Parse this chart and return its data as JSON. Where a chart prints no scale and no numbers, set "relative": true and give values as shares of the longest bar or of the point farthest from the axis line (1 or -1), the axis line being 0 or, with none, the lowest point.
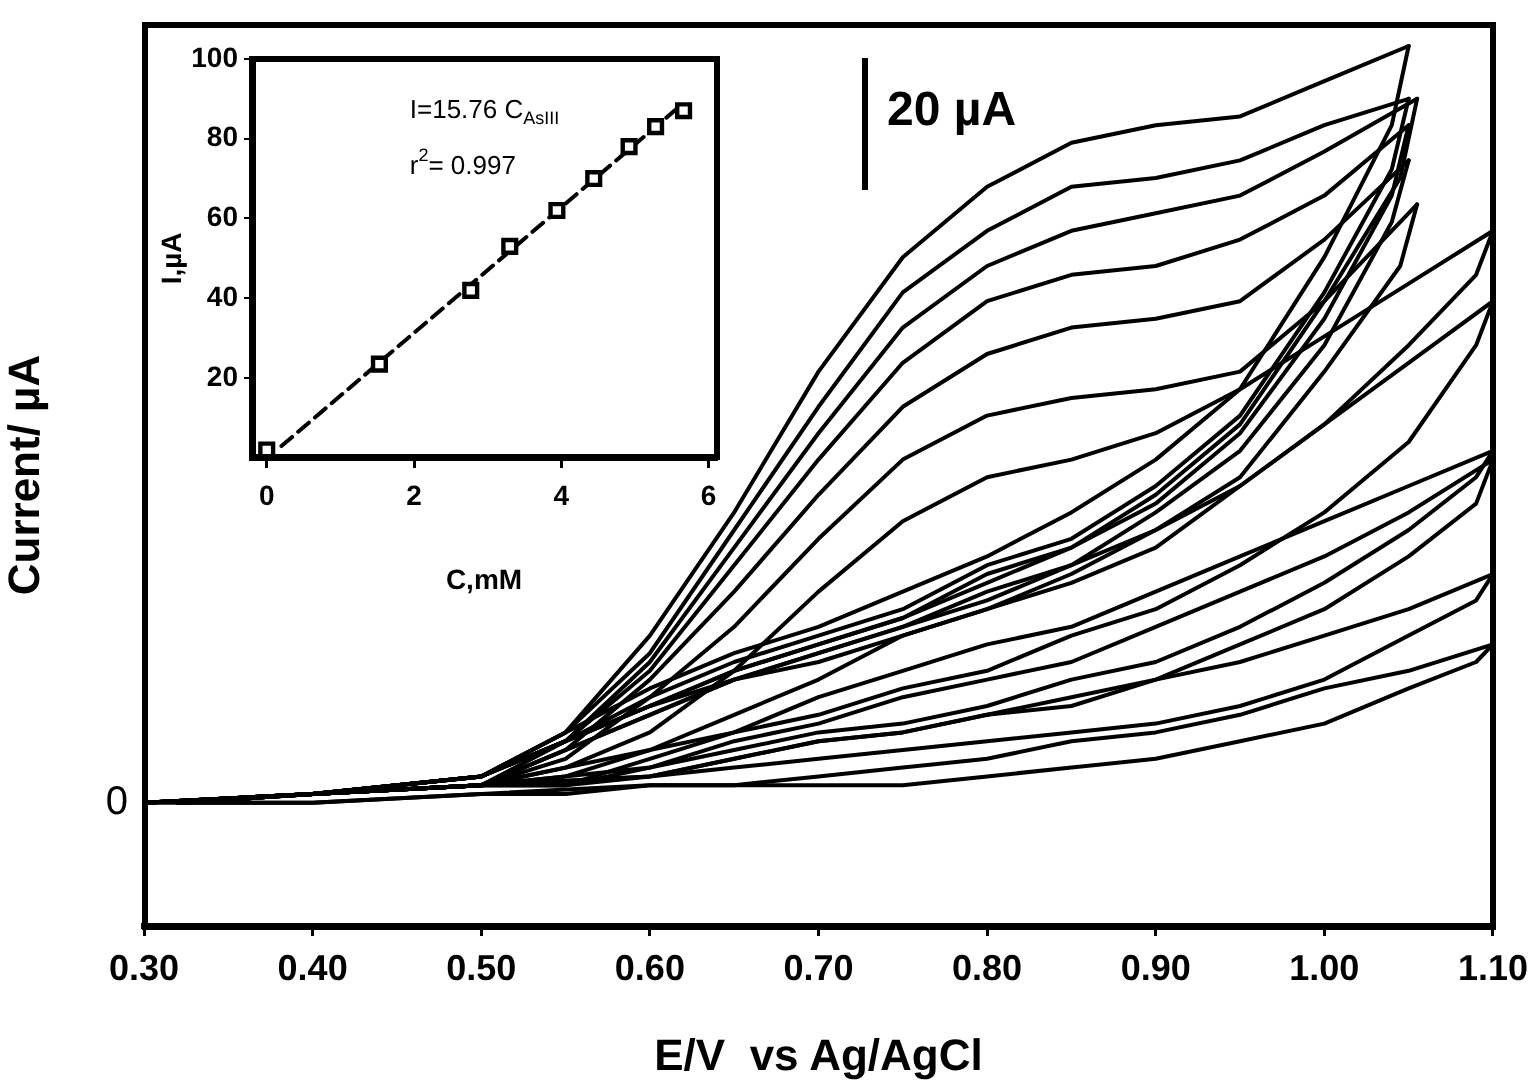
{
  "chart_data": [
    {
      "type": "line",
      "relative": true,
      "xlabel": "E/V  vs Ag/AgCl",
      "ylabel": "Current/ µA",
      "xlim": [
        0.3,
        1.1
      ],
      "xticks": [
        {
          "value": 0.3,
          "label": "0.30"
        },
        {
          "value": 0.4,
          "label": "0.40"
        },
        {
          "value": 0.5,
          "label": "0.50"
        },
        {
          "value": 0.6,
          "label": "0.60"
        },
        {
          "value": 0.7,
          "label": "0.70"
        },
        {
          "value": 0.8,
          "label": "0.80"
        },
        {
          "value": 0.9,
          "label": "0.90"
        },
        {
          "value": 1.0,
          "label": "1.00"
        },
        {
          "value": 1.1,
          "label": "1.10"
        }
      ],
      "annotations": [
        {
          "text": "0",
          "x": 0.3,
          "y": 0.14
        },
        "20 µA"
      ],
      "marker": "none",
      "series": [
        {
          "color": "#000000",
          "x": [
            0.3,
            0.4,
            0.5,
            0.55,
            0.6,
            0.65,
            0.7,
            0.75,
            0.8,
            0.85,
            0.9,
            0.95,
            1.0,
            1.05
          ],
          "values": [
            0.14,
            0.15,
            0.17,
            0.22,
            0.33,
            0.47,
            0.63,
            0.76,
            0.84,
            0.89,
            0.91,
            0.92,
            0.96,
            1.0
          ]
        },
        {
          "color": "#000000",
          "x": [
            1.05,
            1.04,
            1.0,
            0.95,
            0.9,
            0.85,
            0.8,
            0.75,
            0.7,
            0.65,
            0.6,
            0.55,
            0.5,
            0.4,
            0.32
          ],
          "values": [
            1.0,
            0.91,
            0.76,
            0.61,
            0.53,
            0.47,
            0.42,
            0.38,
            0.34,
            0.31,
            0.27,
            0.22,
            0.17,
            0.15,
            0.14
          ]
        },
        {
          "color": "#000000",
          "x": [
            0.3,
            0.4,
            0.5,
            0.55,
            0.6,
            0.65,
            0.7,
            0.75,
            0.8,
            0.85,
            0.9,
            0.95,
            1.0,
            1.05
          ],
          "values": [
            0.14,
            0.15,
            0.17,
            0.22,
            0.31,
            0.45,
            0.59,
            0.72,
            0.79,
            0.84,
            0.85,
            0.87,
            0.91,
            0.94
          ]
        },
        {
          "color": "#000000",
          "x": [
            1.05,
            1.04,
            1.0,
            0.95,
            0.9,
            0.85,
            0.8,
            0.75,
            0.7,
            0.65,
            0.6,
            0.55,
            0.5,
            0.4,
            0.32
          ],
          "values": [
            0.94,
            0.86,
            0.72,
            0.58,
            0.5,
            0.44,
            0.41,
            0.36,
            0.33,
            0.3,
            0.26,
            0.21,
            0.17,
            0.15,
            0.14
          ]
        },
        {
          "color": "#000000",
          "x": [
            0.3,
            0.4,
            0.5,
            0.55,
            0.6,
            0.65,
            0.7,
            0.75,
            0.8,
            0.85,
            0.9,
            0.95,
            1.0,
            1.055
          ],
          "values": [
            0.14,
            0.15,
            0.17,
            0.21,
            0.3,
            0.43,
            0.56,
            0.68,
            0.75,
            0.79,
            0.81,
            0.83,
            0.88,
            0.94
          ]
        },
        {
          "color": "#000000",
          "x": [
            1.055,
            1.045,
            1.0,
            0.95,
            0.9,
            0.85,
            0.8,
            0.75,
            0.7,
            0.65,
            0.6,
            0.55,
            0.5,
            0.4,
            0.32
          ],
          "values": [
            0.94,
            0.85,
            0.71,
            0.57,
            0.49,
            0.43,
            0.4,
            0.35,
            0.32,
            0.29,
            0.25,
            0.21,
            0.17,
            0.15,
            0.14
          ]
        },
        {
          "color": "#000000",
          "x": [
            0.3,
            0.4,
            0.5,
            0.55,
            0.6,
            0.65,
            0.7,
            0.75,
            0.8,
            0.85,
            0.9,
            0.95,
            1.0,
            1.05
          ],
          "values": [
            0.14,
            0.15,
            0.17,
            0.21,
            0.29,
            0.41,
            0.53,
            0.64,
            0.71,
            0.74,
            0.75,
            0.78,
            0.83,
            0.91
          ]
        },
        {
          "color": "#000000",
          "x": [
            1.05,
            1.04,
            1.0,
            0.95,
            0.9,
            0.85,
            0.8,
            0.75,
            0.7,
            0.65,
            0.6,
            0.55,
            0.5,
            0.4,
            0.32
          ],
          "values": [
            0.91,
            0.83,
            0.69,
            0.56,
            0.48,
            0.43,
            0.39,
            0.35,
            0.32,
            0.29,
            0.25,
            0.21,
            0.17,
            0.15,
            0.14
          ]
        },
        {
          "color": "#000000",
          "x": [
            0.3,
            0.4,
            0.5,
            0.55,
            0.6,
            0.65,
            0.7,
            0.75,
            0.8,
            0.85,
            0.9,
            0.95,
            1.0,
            1.05
          ],
          "values": [
            0.14,
            0.15,
            0.16,
            0.2,
            0.28,
            0.38,
            0.49,
            0.59,
            0.65,
            0.68,
            0.69,
            0.71,
            0.78,
            0.87
          ]
        },
        {
          "color": "#000000",
          "x": [
            1.05,
            1.04,
            1.0,
            0.95,
            0.9,
            0.85,
            0.8,
            0.75,
            0.7,
            0.65,
            0.6,
            0.55,
            0.5,
            0.4,
            0.32
          ],
          "values": [
            0.87,
            0.8,
            0.66,
            0.54,
            0.47,
            0.41,
            0.38,
            0.34,
            0.31,
            0.28,
            0.25,
            0.21,
            0.16,
            0.15,
            0.14
          ]
        },
        {
          "color": "#000000",
          "x": [
            0.3,
            0.4,
            0.5,
            0.55,
            0.6,
            0.65,
            0.7,
            0.75,
            0.8,
            0.85,
            0.9,
            0.95,
            1.0,
            1.055
          ],
          "values": [
            0.14,
            0.15,
            0.16,
            0.19,
            0.26,
            0.34,
            0.44,
            0.53,
            0.58,
            0.6,
            0.61,
            0.63,
            0.71,
            0.82
          ]
        },
        {
          "color": "#000000",
          "x": [
            1.055,
            1.045,
            1.0,
            0.95,
            0.9,
            0.85,
            0.8,
            0.75,
            0.7,
            0.65,
            0.6,
            0.55,
            0.5,
            0.4,
            0.32
          ],
          "values": [
            0.82,
            0.75,
            0.63,
            0.51,
            0.45,
            0.4,
            0.36,
            0.33,
            0.3,
            0.28,
            0.24,
            0.2,
            0.16,
            0.15,
            0.14
          ]
        },
        {
          "color": "#000000",
          "x": [
            0.3,
            0.4,
            0.5,
            0.55,
            0.6,
            0.65,
            0.7,
            0.75,
            0.8,
            0.85,
            0.9,
            0.95,
            1.0,
            1.05,
            1.1
          ],
          "values": [
            0.14,
            0.15,
            0.16,
            0.18,
            0.22,
            0.29,
            0.38,
            0.46,
            0.51,
            0.53,
            0.56,
            0.61,
            0.67,
            0.73,
            0.79
          ]
        },
        {
          "color": "#000000",
          "x": [
            1.1,
            1.09,
            1.05,
            1.0,
            0.95,
            0.9,
            0.85,
            0.8,
            0.75,
            0.7,
            0.65,
            0.6,
            0.5,
            0.4,
            0.32
          ],
          "values": [
            0.79,
            0.74,
            0.66,
            0.57,
            0.5,
            0.45,
            0.41,
            0.37,
            0.34,
            0.31,
            0.28,
            0.24,
            0.16,
            0.15,
            0.14
          ]
        },
        {
          "color": "#000000",
          "x": [
            0.3,
            0.4,
            0.5,
            0.55,
            0.6,
            0.65,
            0.7,
            0.75,
            0.8,
            0.85,
            0.9,
            0.95,
            1.0,
            1.05,
            1.1
          ],
          "values": [
            0.14,
            0.15,
            0.16,
            0.17,
            0.2,
            0.24,
            0.28,
            0.33,
            0.36,
            0.39,
            0.43,
            0.5,
            0.57,
            0.64,
            0.71
          ]
        },
        {
          "color": "#000000",
          "x": [
            1.1,
            1.09,
            1.05,
            1.0,
            0.95,
            0.9,
            0.85,
            0.8,
            0.75,
            0.7,
            0.65,
            0.6,
            0.5,
            0.4,
            0.32
          ],
          "values": [
            0.71,
            0.66,
            0.55,
            0.47,
            0.41,
            0.36,
            0.33,
            0.29,
            0.27,
            0.24,
            0.22,
            0.2,
            0.16,
            0.15,
            0.14
          ]
        },
        {
          "color": "#000000",
          "x": [
            0.3,
            0.4,
            0.5,
            0.55,
            0.6,
            0.65,
            0.7,
            0.75,
            0.8,
            0.85,
            0.9,
            0.95,
            1.0,
            1.05,
            1.1
          ],
          "values": [
            0.14,
            0.15,
            0.16,
            0.16,
            0.19,
            0.22,
            0.26,
            0.29,
            0.32,
            0.34,
            0.38,
            0.42,
            0.46,
            0.5,
            0.54
          ]
        },
        {
          "color": "#000000",
          "x": [
            1.1,
            1.09,
            1.05,
            1.0,
            0.95,
            0.9,
            0.85,
            0.8,
            0.75,
            0.7,
            0.65,
            0.6,
            0.5,
            0.4,
            0.32
          ],
          "values": [
            0.54,
            0.51,
            0.45,
            0.39,
            0.34,
            0.3,
            0.28,
            0.25,
            0.23,
            0.22,
            0.2,
            0.18,
            0.16,
            0.15,
            0.14
          ]
        },
        {
          "color": "#000000",
          "x": [
            0.3,
            0.4,
            0.5,
            0.55,
            0.6,
            0.65,
            0.7,
            0.75,
            0.8,
            0.85,
            0.9,
            0.95,
            1.0,
            1.05,
            1.1
          ],
          "values": [
            0.14,
            0.15,
            0.16,
            0.16,
            0.18,
            0.21,
            0.23,
            0.26,
            0.28,
            0.3,
            0.34,
            0.38,
            0.42,
            0.47,
            0.53
          ]
        },
        {
          "color": "#000000",
          "x": [
            1.1,
            1.09,
            1.05,
            1.0,
            0.95,
            0.9,
            0.85,
            0.8,
            0.75,
            0.7,
            0.65,
            0.6,
            0.5,
            0.4,
            0.32
          ],
          "values": [
            0.53,
            0.48,
            0.42,
            0.36,
            0.32,
            0.28,
            0.26,
            0.24,
            0.22,
            0.21,
            0.19,
            0.17,
            0.16,
            0.15,
            0.14
          ]
        },
        {
          "color": "#000000",
          "x": [
            0.3,
            0.4,
            0.5,
            0.55,
            0.6,
            0.65,
            0.7,
            0.75,
            0.8,
            0.85,
            0.9,
            0.95,
            1.0,
            1.05,
            1.1
          ],
          "values": [
            0.14,
            0.15,
            0.16,
            0.16,
            0.17,
            0.19,
            0.21,
            0.22,
            0.24,
            0.25,
            0.28,
            0.3,
            0.33,
            0.36,
            0.4
          ]
        },
        {
          "color": "#000000",
          "x": [
            1.1,
            1.09,
            1.05,
            1.0,
            0.95,
            0.9,
            0.85,
            0.8,
            0.75,
            0.7,
            0.65,
            0.6,
            0.5,
            0.4,
            0.32
          ],
          "values": [
            0.4,
            0.37,
            0.33,
            0.28,
            0.25,
            0.23,
            0.22,
            0.21,
            0.2,
            0.19,
            0.18,
            0.17,
            0.16,
            0.15,
            0.14
          ]
        },
        {
          "color": "#000000",
          "x": [
            0.3,
            0.4,
            0.5,
            0.55,
            0.6,
            0.65,
            0.7,
            0.75,
            0.8,
            0.85,
            0.9,
            0.95,
            1.0,
            1.05,
            1.1
          ],
          "values": [
            0.14,
            0.14,
            0.15,
            0.15,
            0.16,
            0.16,
            0.17,
            0.18,
            0.19,
            0.21,
            0.22,
            0.24,
            0.27,
            0.29,
            0.32
          ]
        },
        {
          "color": "#000000",
          "x": [
            1.1,
            1.09,
            1.05,
            1.0,
            0.95,
            0.9,
            0.85,
            0.8,
            0.75,
            0.7,
            0.65,
            0.6,
            0.5,
            0.4,
            0.32
          ],
          "values": [
            0.32,
            0.3,
            0.27,
            0.23,
            0.21,
            0.19,
            0.18,
            0.17,
            0.16,
            0.16,
            0.16,
            0.16,
            0.15,
            0.14,
            0.14
          ]
        }
      ]
    },
    {
      "type": "scatter",
      "xlabel": "C,mM",
      "ylabel": "I,µA",
      "xlim": [
        -0.2,
        6.1
      ],
      "ylim": [
        0,
        100
      ],
      "xticks": [
        0,
        2,
        4,
        6
      ],
      "yticks": [
        20,
        40,
        60,
        80,
        100
      ],
      "annotations": [
        "I=15.76 C$_{AsIII}$",
        "r$^{2}$= 0.997"
      ],
      "marker": "square",
      "series": [
        {
          "color": "#000000",
          "x": [
            0.0,
            1.53,
            2.77,
            3.3,
            3.94,
            4.44,
            4.92,
            5.28,
            5.66
          ],
          "values": [
            2,
            23.5,
            42,
            53,
            62,
            70,
            78,
            83,
            87
          ]
        },
        {
          "type": "line",
          "line_style": "dashed",
          "marker": "none",
          "color": "#000000",
          "x": [
            0.2,
            5.6
          ],
          "values": [
            3,
            88
          ]
        }
      ]
    }
  ]
}
